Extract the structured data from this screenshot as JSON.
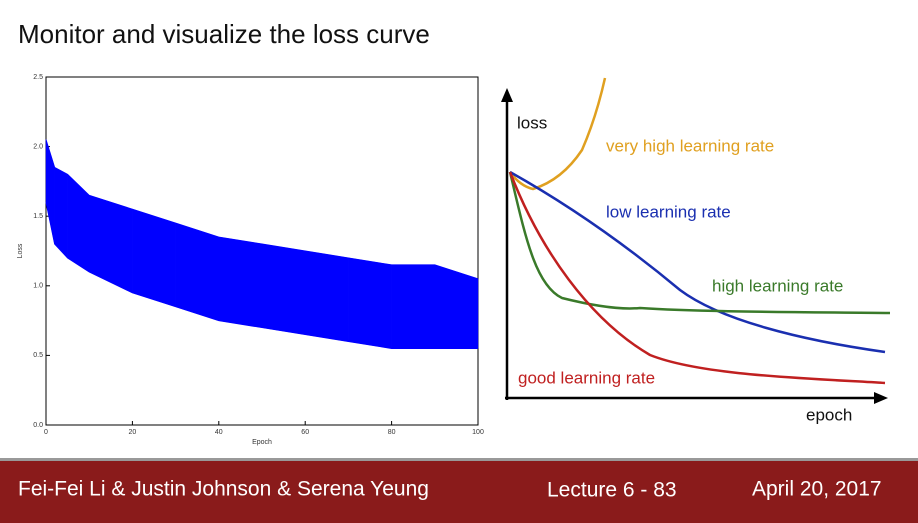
{
  "title": "Monitor and visualize the loss curve",
  "chart_data": {
    "type": "band",
    "xlabel": "Epoch",
    "ylabel": "Loss",
    "x": [
      0,
      2,
      5,
      10,
      20,
      30,
      40,
      50,
      60,
      70,
      80,
      90,
      100
    ],
    "series": [
      {
        "color": "#0000ff",
        "values": [
          2.05,
          1.85,
          1.8,
          1.65,
          1.55,
          1.45,
          1.35,
          1.3,
          1.25,
          1.2,
          1.15,
          1.15,
          1.05
        ]
      },
      {
        "color": "#0000ff",
        "values": [
          1.6,
          1.3,
          1.2,
          1.1,
          0.95,
          0.85,
          0.75,
          0.7,
          0.65,
          0.6,
          0.55,
          0.55,
          0.55
        ]
      }
    ],
    "xlim": [
      0,
      100
    ],
    "xticks": [
      0,
      20,
      40,
      60,
      80,
      100
    ],
    "ylim": [
      0,
      2.5
    ],
    "yticks": [
      {
        "value": 0,
        "label": "0.0"
      },
      {
        "value": 0.5,
        "label": "0.5"
      },
      {
        "value": 1,
        "label": "1.0"
      },
      {
        "value": 1.5,
        "label": "1.5"
      },
      {
        "value": 2,
        "label": "2.0"
      },
      {
        "value": 2.5,
        "label": "2.5"
      }
    ]
  },
  "diagram": {
    "y_label": "loss",
    "x_label": "epoch",
    "curves": [
      "very high learning rate",
      "low learning rate",
      "high learning rate",
      "good learning rate"
    ]
  },
  "footer": {
    "authors": "Fei-Fei Li & Justin Johnson & Serena Yeung",
    "lecture": "Lecture 6 - 83",
    "date": "April 20, 2017"
  }
}
